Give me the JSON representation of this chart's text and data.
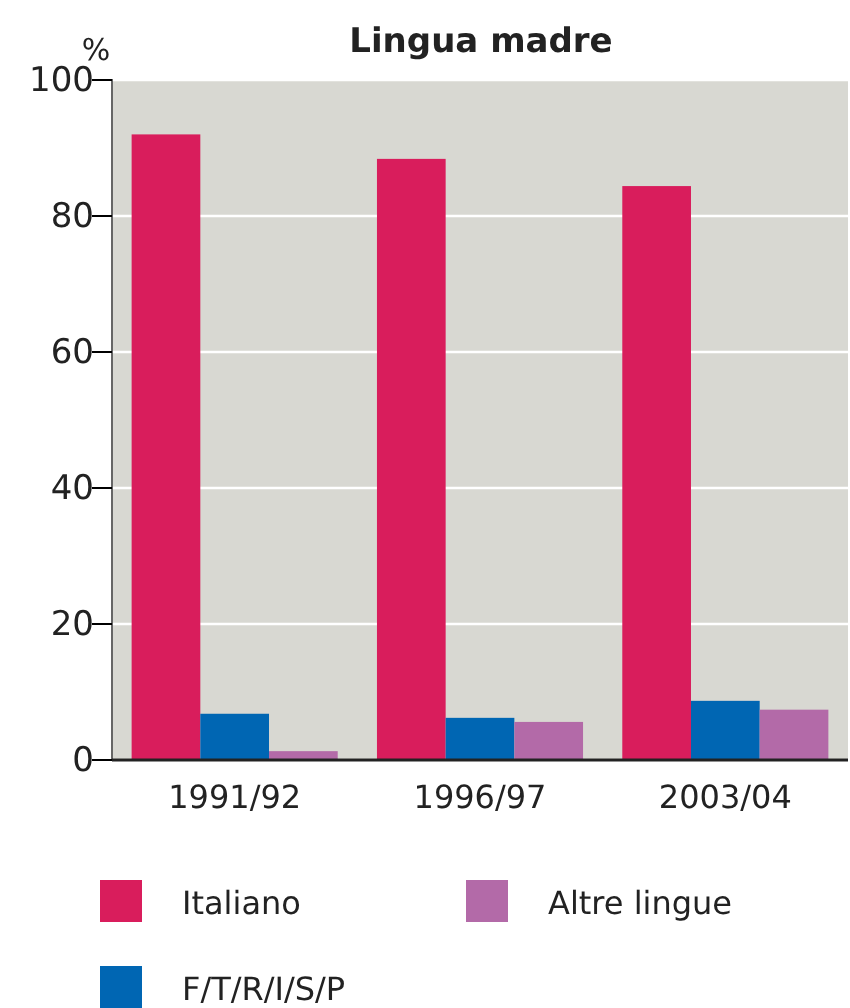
{
  "chart_data": {
    "type": "bar",
    "title": "Lingua madre",
    "ylabel": "%",
    "categories": [
      "1991/92",
      "1996/97",
      "2003/04"
    ],
    "series": [
      {
        "name": "Italiano",
        "color": "#d91d5c",
        "values": [
          92,
          88.4,
          84.4
        ]
      },
      {
        "name": "F/T/R/I/S/P",
        "color": "#0066b3",
        "values": [
          6.8,
          6.2,
          8.7
        ]
      },
      {
        "name": "Altre lingue",
        "color": "#b36aa8",
        "values": [
          1.3,
          5.6,
          7.4
        ]
      }
    ],
    "ylim": [
      0,
      100
    ],
    "yticks": [
      0,
      20,
      40,
      60,
      80,
      100
    ],
    "grid": "y",
    "legend": "bottom"
  }
}
